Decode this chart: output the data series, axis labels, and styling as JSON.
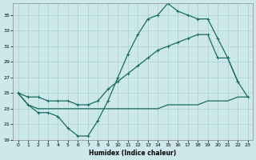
{
  "xlabel": "Humidex (Indice chaleur)",
  "xlim": [
    -0.5,
    23.5
  ],
  "ylim": [
    19,
    36.5
  ],
  "yticks": [
    19,
    21,
    23,
    25,
    27,
    29,
    31,
    33,
    35
  ],
  "xticks": [
    0,
    1,
    2,
    3,
    4,
    5,
    6,
    7,
    8,
    9,
    10,
    11,
    12,
    13,
    14,
    15,
    16,
    17,
    18,
    19,
    20,
    21,
    22,
    23
  ],
  "background_color": "#cce8ea",
  "grid_color": "#aacfd2",
  "line_color": "#1a6b60",
  "curve_x": [
    0,
    1,
    2,
    3,
    4,
    5,
    6,
    7,
    8,
    9,
    10,
    11,
    12,
    13,
    14,
    15,
    16,
    17,
    18,
    19,
    20,
    21,
    22
  ],
  "curve_y": [
    25.0,
    23.5,
    22.5,
    22.5,
    22.0,
    20.5,
    19.5,
    19.5,
    21.5,
    24.0,
    27.0,
    30.0,
    32.5,
    34.5,
    35.0,
    36.5,
    35.5,
    35.0,
    34.5,
    34.5,
    32.0,
    29.5,
    26.5
  ],
  "diag_x": [
    0,
    1,
    2,
    3,
    4,
    5,
    6,
    7,
    8,
    9,
    10,
    11,
    12,
    13,
    14,
    15,
    16,
    17,
    18,
    19,
    20,
    21,
    22,
    23
  ],
  "diag_y": [
    25.0,
    24.5,
    24.5,
    24.0,
    24.0,
    24.0,
    23.5,
    23.5,
    24.0,
    25.5,
    26.5,
    27.5,
    28.5,
    29.5,
    30.5,
    31.0,
    31.5,
    32.0,
    32.5,
    32.5,
    29.5,
    29.5,
    26.5,
    24.5
  ],
  "flat_x": [
    0,
    1,
    2,
    3,
    4,
    5,
    6,
    7,
    8,
    9,
    10,
    11,
    12,
    13,
    14,
    15,
    16,
    17,
    18,
    19,
    20,
    21,
    22,
    23
  ],
  "flat_y": [
    25.0,
    23.5,
    23.0,
    23.0,
    23.0,
    23.0,
    23.0,
    23.0,
    23.0,
    23.0,
    23.0,
    23.0,
    23.0,
    23.0,
    23.0,
    23.5,
    23.5,
    23.5,
    23.5,
    24.0,
    24.0,
    24.0,
    24.5,
    24.5
  ]
}
